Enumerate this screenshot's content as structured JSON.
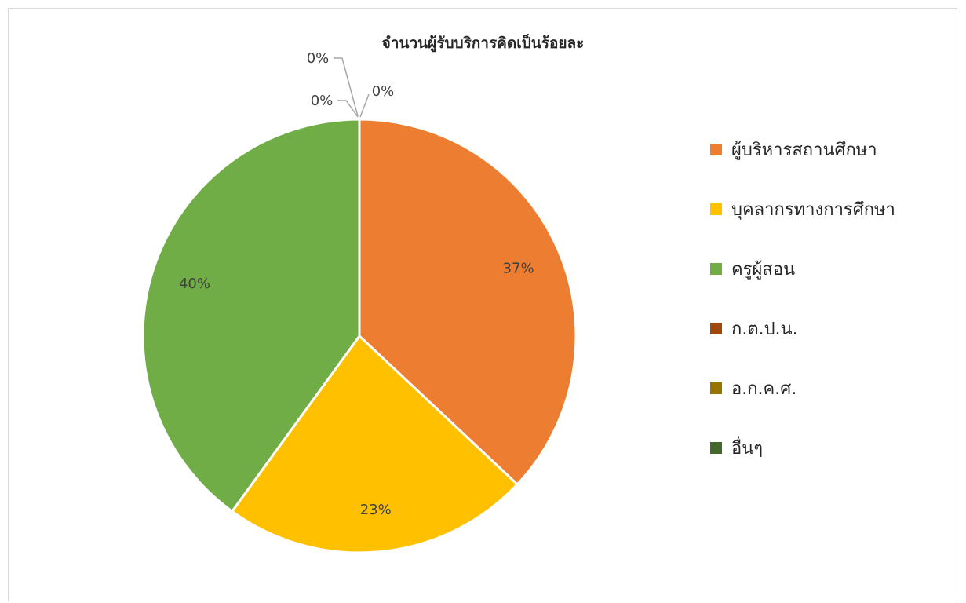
{
  "chart_data": {
    "type": "pie",
    "title": "จำนวนผู้รับบริการคิดเป็นร้อยละ",
    "categories": [
      "ผู้บริหารสถานศึกษา",
      "บุคลากรทางการศึกษา",
      "ครูผู้สอน",
      "ก.ต.ป.น.",
      "อ.ก.ค.ศ.",
      "อื่นๆ"
    ],
    "values": [
      37,
      23,
      40,
      0,
      0,
      0
    ],
    "data_labels": [
      "37%",
      "23%",
      "40%",
      "0%",
      "0%",
      "0%"
    ],
    "colors": [
      "#ED7D31",
      "#FFC000",
      "#70AD47",
      "#9E480E",
      "#997300",
      "#43682B"
    ],
    "legend_position": "right"
  }
}
